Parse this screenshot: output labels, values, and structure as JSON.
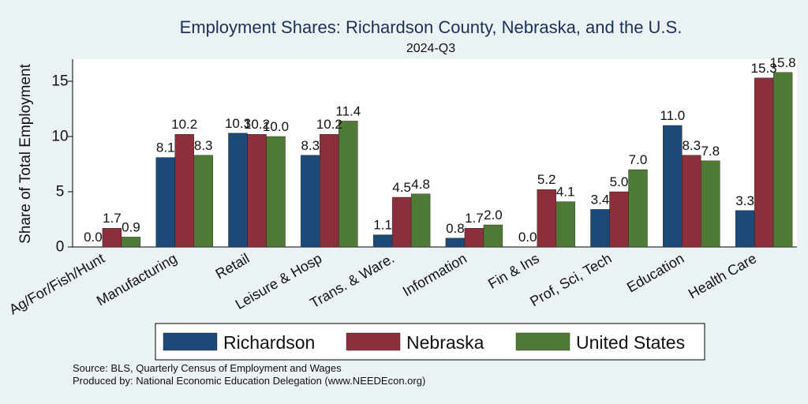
{
  "chart_data": {
    "type": "bar",
    "title": "Employment Shares: Richardson County, Nebraska, and the U.S.",
    "subtitle": "2024-Q3",
    "ylabel": "Share of Total Employment",
    "xlabel": "",
    "ylim": [
      0,
      17
    ],
    "yticks": [
      0,
      5,
      10,
      15
    ],
    "categories": [
      "Ag/For/Fish/Hunt",
      "Manufacturing",
      "Retail",
      "Leisure & Hosp",
      "Trans. & Ware.",
      "Information",
      "Fin & Ins",
      "Prof, Sci, Tech",
      "Education",
      "Health Care"
    ],
    "series": [
      {
        "name": "Richardson",
        "color": "#1b4a78",
        "values": [
          0.0,
          8.1,
          10.3,
          8.3,
          1.1,
          0.8,
          0.0,
          3.4,
          11.0,
          3.3
        ],
        "labels": [
          "0.0",
          "8.1",
          "10.3",
          "8.3",
          "1.1",
          "0.8",
          "0.0",
          "3.4",
          "11.0",
          "3.3"
        ]
      },
      {
        "name": "Nebraska",
        "color": "#8c2f3b",
        "values": [
          1.7,
          10.2,
          10.2,
          10.2,
          4.5,
          1.7,
          5.2,
          5.0,
          8.3,
          15.3
        ],
        "labels": [
          "1.7",
          "10.2",
          "10.2",
          "10.2",
          "4.5",
          "1.7",
          "5.2",
          "5.0",
          "8.3",
          "15.3"
        ]
      },
      {
        "name": "United States",
        "color": "#4e7a35",
        "values": [
          0.9,
          8.3,
          10.0,
          11.4,
          4.8,
          2.0,
          4.1,
          7.0,
          7.8,
          15.8
        ],
        "labels": [
          "0.9",
          "8.3",
          "10.0",
          "11.4",
          "4.8",
          "2.0",
          "4.1",
          "7.0",
          "7.8",
          "15.8"
        ]
      }
    ],
    "legend_position": "bottom"
  },
  "footer": {
    "source": "Source: BLS, Quarterly Census of Employment and Wages",
    "produced_by": "Produced by: National Economic Education Delegation (www.NEEDEcon.org)"
  },
  "colors": {
    "background": "#eaf2f3",
    "plot_background": "#ffffff",
    "title": "#1a2f5a"
  }
}
